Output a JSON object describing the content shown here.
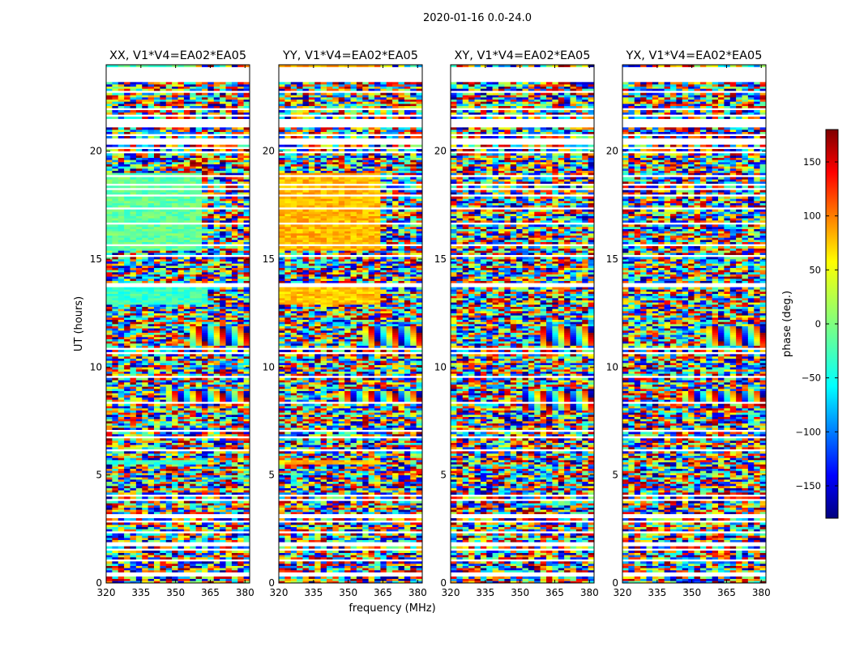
{
  "figure": {
    "suptitle": "2020-01-16 0.0-24.0",
    "shared_xlabel": "frequency (MHz)",
    "shared_ylabel": "UT (hours)"
  },
  "chart_data": {
    "type": "heatmap",
    "xlim": [
      320,
      382
    ],
    "ylim": [
      0,
      24
    ],
    "xticks": [
      320,
      335,
      350,
      365,
      380
    ],
    "yticks": [
      0,
      5,
      10,
      15,
      20
    ],
    "colorbar": {
      "label": "phase (deg.)",
      "range": [
        -180,
        180
      ],
      "ticks": [
        150,
        100,
        50,
        0,
        -50,
        -100,
        -150
      ],
      "tick_labels": [
        "150",
        "100",
        "50",
        "0",
        "−50",
        "−100",
        "−150"
      ],
      "colormap": "jet",
      "colors": [
        "#00007f",
        "#0000ff",
        "#007fff",
        "#00ffff",
        "#7fff7f",
        "#ffff00",
        "#ff7f00",
        "#ff0000",
        "#7f0000"
      ]
    },
    "blank_ut_ranges": [
      [
        0.35,
        0.55
      ],
      [
        20.4,
        20.6
      ],
      [
        23.3,
        23.9
      ]
    ],
    "panels": [
      {
        "title": "XX, V1*V4=EA02*EA05",
        "smooth_blocks": [
          {
            "ut": [
              12.9,
              13.8
            ],
            "freq": [
              320,
              363
            ],
            "phase": -25
          },
          {
            "ut": [
              15.4,
              19.0
            ],
            "freq": [
              320,
              362
            ],
            "phase": -10
          },
          {
            "ut": [
              5.5,
              5.7
            ],
            "freq": [
              320,
              363
            ],
            "phase": -30
          },
          {
            "ut": [
              23.9,
              24.0
            ],
            "freq": [
              320,
              360
            ],
            "phase": -15
          }
        ],
        "fringe_bands": [
          {
            "ut": [
              11.0,
              11.9
            ],
            "freq": [
              355,
              382
            ]
          },
          {
            "ut": [
              8.3,
              8.9
            ],
            "freq": [
              345,
              382
            ]
          }
        ]
      },
      {
        "title": "YY, V1*V4=EA02*EA05",
        "smooth_blocks": [
          {
            "ut": [
              12.9,
              13.8
            ],
            "freq": [
              320,
              364
            ],
            "phase": 65
          },
          {
            "ut": [
              15.4,
              19.0
            ],
            "freq": [
              320,
              364
            ],
            "phase": 70
          },
          {
            "ut": [
              5.5,
              5.7
            ],
            "freq": [
              320,
              364
            ],
            "phase": 65
          },
          {
            "ut": [
              23.9,
              24.0
            ],
            "freq": [
              320,
              362
            ],
            "phase": 75
          }
        ],
        "fringe_bands": [
          {
            "ut": [
              11.0,
              11.9
            ],
            "freq": [
              355,
              382
            ]
          },
          {
            "ut": [
              8.3,
              8.9
            ],
            "freq": [
              345,
              382
            ]
          }
        ]
      },
      {
        "title": "XY, V1*V4=EA02*EA05",
        "smooth_blocks": [],
        "fringe_bands": [
          {
            "ut": [
              11.0,
              11.9
            ],
            "freq": [
              358,
              382
            ]
          },
          {
            "ut": [
              8.0,
              8.9
            ],
            "freq": [
              350,
              382
            ]
          }
        ]
      },
      {
        "title": "YX, V1*V4=EA02*EA05",
        "smooth_blocks": [],
        "fringe_bands": [
          {
            "ut": [
              11.0,
              11.9
            ],
            "freq": [
              355,
              382
            ]
          },
          {
            "ut": [
              8.3,
              8.9
            ],
            "freq": [
              345,
              382
            ]
          }
        ]
      }
    ]
  }
}
